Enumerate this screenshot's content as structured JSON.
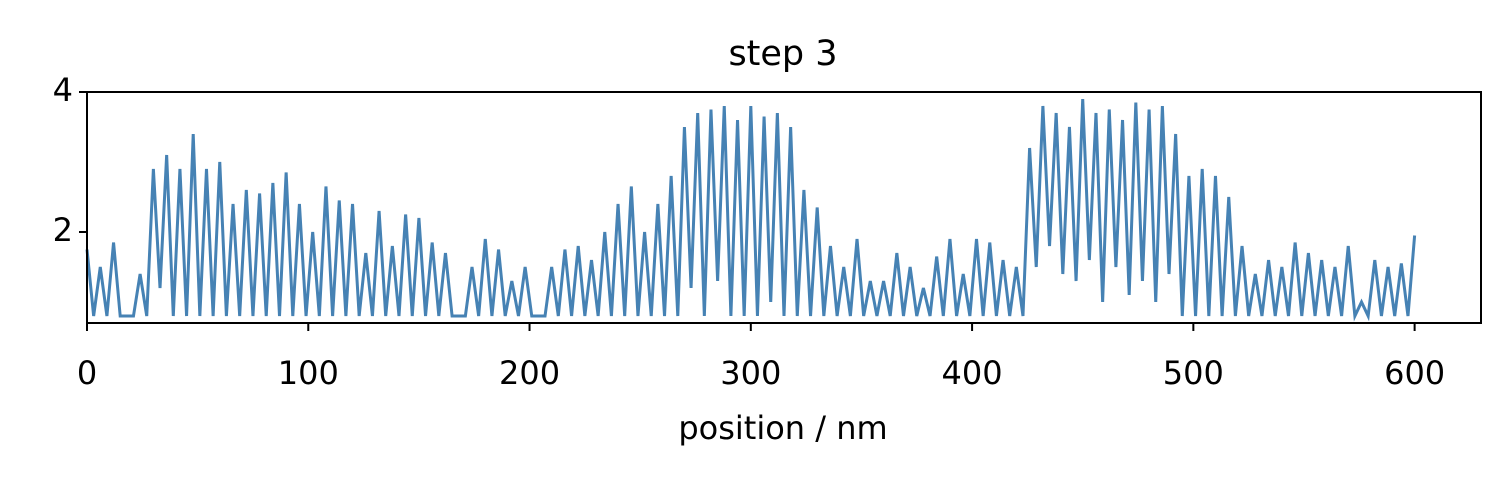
{
  "chart_data": {
    "type": "line",
    "title": "step 3",
    "xlabel": "position / nm",
    "xlim": [
      0,
      630
    ],
    "xticks": [
      0,
      100,
      200,
      300,
      400,
      500,
      600
    ],
    "ylim": [
      0.7,
      4
    ],
    "yticks": [
      2,
      4
    ],
    "series": [
      {
        "color": "#4682b4",
        "x": [
          0,
          3,
          6,
          9,
          12,
          15,
          18,
          21,
          24,
          27,
          30,
          33,
          36,
          39,
          42,
          45,
          48,
          51,
          54,
          57,
          60,
          63,
          66,
          69,
          72,
          75,
          78,
          81,
          84,
          87,
          90,
          93,
          96,
          99,
          102,
          105,
          108,
          111,
          114,
          117,
          120,
          123,
          126,
          129,
          132,
          135,
          138,
          141,
          144,
          147,
          150,
          153,
          156,
          159,
          162,
          165,
          168,
          171,
          174,
          177,
          180,
          183,
          186,
          189,
          192,
          195,
          198,
          201,
          204,
          207,
          210,
          213,
          216,
          219,
          222,
          225,
          228,
          231,
          234,
          237,
          240,
          243,
          246,
          249,
          252,
          255,
          258,
          261,
          264,
          267,
          270,
          273,
          276,
          279,
          282,
          285,
          288,
          291,
          294,
          297,
          300,
          303,
          306,
          309,
          312,
          315,
          318,
          321,
          324,
          327,
          330,
          333,
          336,
          339,
          342,
          345,
          348,
          351,
          354,
          357,
          360,
          363,
          366,
          369,
          372,
          375,
          378,
          381,
          384,
          387,
          390,
          393,
          396,
          399,
          402,
          405,
          408,
          411,
          414,
          417,
          420,
          423,
          426,
          429,
          432,
          435,
          438,
          441,
          444,
          447,
          450,
          453,
          456,
          459,
          462,
          465,
          468,
          471,
          474,
          477,
          480,
          483,
          486,
          489,
          492,
          495,
          498,
          501,
          504,
          507,
          510,
          513,
          516,
          519,
          522,
          525,
          528,
          531,
          534,
          537,
          540,
          543,
          546,
          549,
          552,
          555,
          558,
          561,
          564,
          567,
          570,
          573,
          576,
          579,
          582,
          585,
          588,
          591,
          594,
          597,
          600
        ],
        "values": [
          1.75,
          0.8,
          1.5,
          0.8,
          1.85,
          0.8,
          0.8,
          0.8,
          1.4,
          0.8,
          2.9,
          1.2,
          3.1,
          0.8,
          2.9,
          0.8,
          3.4,
          0.8,
          2.9,
          0.8,
          3.0,
          0.8,
          2.4,
          0.8,
          2.6,
          0.8,
          2.55,
          0.8,
          2.7,
          0.8,
          2.85,
          0.8,
          2.4,
          0.8,
          2.0,
          0.8,
          2.65,
          0.8,
          2.45,
          0.8,
          2.4,
          0.8,
          1.7,
          0.8,
          2.3,
          0.8,
          1.8,
          0.8,
          2.25,
          0.8,
          2.2,
          0.8,
          1.85,
          0.8,
          1.7,
          0.8,
          0.8,
          0.8,
          1.5,
          0.8,
          1.9,
          0.8,
          1.75,
          0.8,
          1.3,
          0.8,
          1.5,
          0.8,
          0.8,
          0.8,
          1.5,
          0.8,
          1.75,
          0.8,
          1.8,
          0.8,
          1.6,
          0.8,
          2.0,
          0.8,
          2.4,
          0.8,
          2.65,
          0.8,
          2.0,
          0.8,
          2.4,
          0.8,
          2.8,
          0.8,
          3.5,
          1.2,
          3.7,
          0.8,
          3.75,
          1.3,
          3.8,
          0.8,
          3.6,
          0.8,
          3.8,
          0.8,
          3.65,
          1.0,
          3.7,
          0.8,
          3.5,
          0.8,
          2.6,
          0.8,
          2.35,
          0.8,
          1.8,
          0.8,
          1.5,
          0.8,
          1.9,
          0.8,
          1.3,
          0.8,
          1.3,
          0.8,
          1.7,
          0.8,
          1.5,
          0.8,
          1.2,
          0.8,
          1.65,
          0.8,
          1.9,
          0.8,
          1.4,
          0.8,
          1.9,
          0.8,
          1.85,
          0.8,
          1.6,
          0.8,
          1.5,
          0.8,
          3.2,
          1.5,
          3.8,
          1.8,
          3.7,
          1.4,
          3.5,
          1.3,
          3.9,
          1.6,
          3.7,
          1.0,
          3.75,
          1.5,
          3.6,
          1.1,
          3.85,
          1.3,
          3.75,
          1.0,
          3.8,
          1.4,
          3.4,
          0.8,
          2.8,
          0.8,
          2.9,
          0.8,
          2.8,
          0.8,
          2.5,
          0.8,
          1.8,
          0.8,
          1.4,
          0.8,
          1.6,
          0.8,
          1.5,
          0.8,
          1.85,
          0.8,
          1.7,
          0.8,
          1.6,
          0.8,
          1.5,
          0.8,
          1.8,
          0.8,
          1.0,
          0.8,
          1.6,
          0.8,
          1.5,
          0.8,
          1.55,
          0.8,
          1.95
        ]
      }
    ]
  }
}
